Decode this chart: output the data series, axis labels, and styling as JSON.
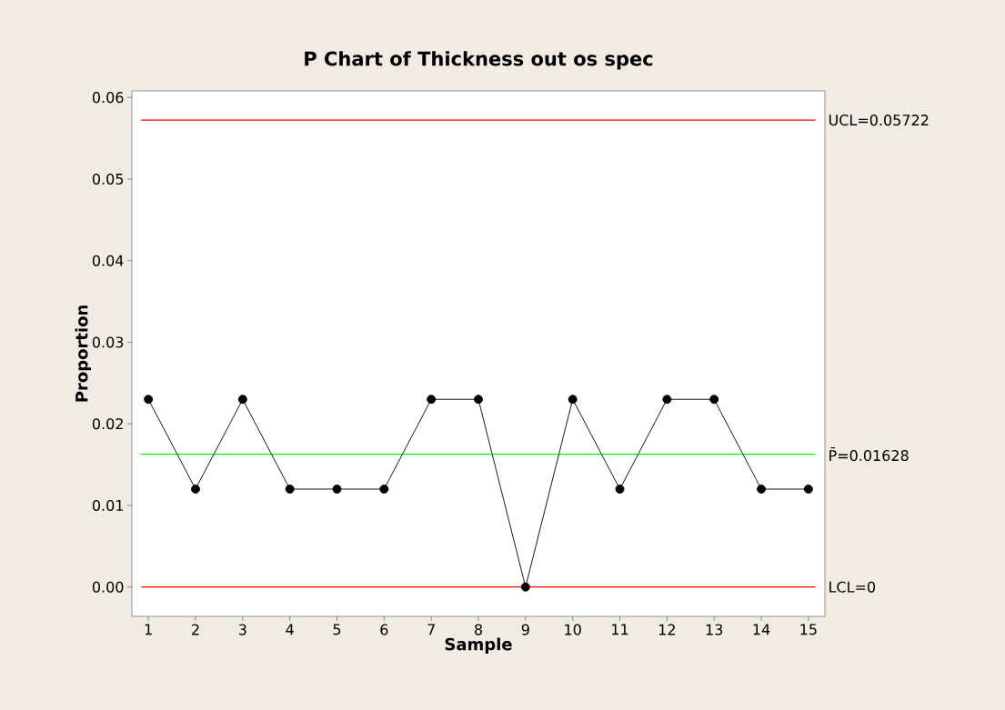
{
  "chart_data": {
    "type": "line",
    "title": "P Chart of Thickness out os spec",
    "xlabel": "Sample",
    "ylabel": "Proportion",
    "x": [
      1,
      2,
      3,
      4,
      5,
      6,
      7,
      8,
      9,
      10,
      11,
      12,
      13,
      14,
      15
    ],
    "series": [
      {
        "color": "#000000",
        "values": [
          0.023,
          0.012,
          0.023,
          0.012,
          0.012,
          0.012,
          0.023,
          0.023,
          0,
          0.023,
          0.012,
          0.023,
          0.023,
          0.012,
          0.012
        ]
      }
    ],
    "xlim": [
      0.65,
      15.35
    ],
    "ylim": [
      -0.0036,
      0.0608
    ],
    "xticks": [
      1,
      2,
      3,
      4,
      5,
      6,
      7,
      8,
      9,
      10,
      11,
      12,
      13,
      14,
      15
    ],
    "yticks": [
      {
        "value": 0,
        "label": "0.00"
      },
      {
        "value": 0.01,
        "label": "0.01"
      },
      {
        "value": 0.02,
        "label": "0.02"
      },
      {
        "value": 0.03,
        "label": "0.03"
      },
      {
        "value": 0.04,
        "label": "0.04"
      },
      {
        "value": 0.05,
        "label": "0.05"
      },
      {
        "value": 0.06,
        "label": "0.06"
      }
    ],
    "ref_lines": [
      {
        "axis": "y",
        "value": 0.05722,
        "label": "UCL=0.05722",
        "color": "#ff0000"
      },
      {
        "axis": "y",
        "value": 0.01628,
        "label": "P̄=0.01628",
        "color": "#00ee00"
      },
      {
        "axis": "y",
        "value": 0,
        "label": "LCL=0",
        "color": "#ff0000"
      }
    ],
    "marker": "circle",
    "line_style": "solid",
    "grid": false
  }
}
